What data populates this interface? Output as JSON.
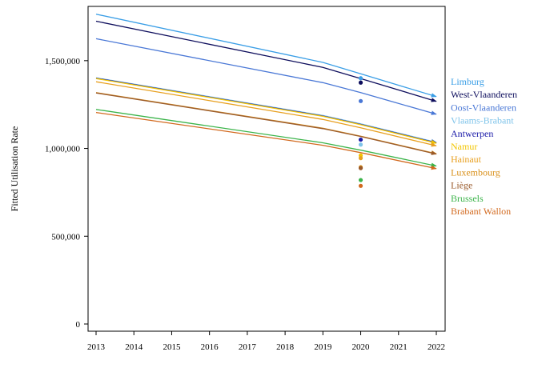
{
  "chart_data": {
    "type": "line",
    "title": "",
    "xlabel": "",
    "ylabel": "Fitted Utilisation Rate",
    "xlim": [
      2013,
      2022
    ],
    "ylim": [
      0,
      1800000
    ],
    "x_ticks": [
      2013,
      2014,
      2015,
      2016,
      2017,
      2018,
      2019,
      2020,
      2021,
      2022
    ],
    "x_tick_labels": [
      "2013",
      "2014",
      "2015",
      "2016",
      "2017",
      "2018",
      "2019",
      "2020",
      "2021",
      "2022"
    ],
    "y_ticks": [
      0,
      500000,
      1000000,
      1500000
    ],
    "y_tick_labels": [
      "0",
      "500,000",
      "1,000,000",
      "1,500,000"
    ],
    "grid": false,
    "legend": "right, labels in series colors",
    "series": [
      {
        "name": "Limburg",
        "color": "#3a9ee6",
        "x": [
          2013,
          2019,
          2020,
          2022
        ],
        "y": [
          1765000,
          1490000,
          1425000,
          1295000
        ],
        "observed_2020": 1400000
      },
      {
        "name": "West-Vlaanderen",
        "color": "#0d0d5c",
        "x": [
          2013,
          2019,
          2020,
          2022
        ],
        "y": [
          1725000,
          1462000,
          1398000,
          1268000
        ],
        "observed_2020": 1375000
      },
      {
        "name": "Oost-Vlaanderen",
        "color": "#4a78d6",
        "x": [
          2013,
          2019,
          2020,
          2022
        ],
        "y": [
          1625000,
          1375000,
          1318000,
          1195000
        ],
        "observed_2020": 1270000
      },
      {
        "name": "Vlaams-Brabant",
        "color": "#7fc4ea",
        "x": [
          2013,
          2019,
          2020,
          2022
        ],
        "y": [
          1402000,
          1188000,
          1140000,
          1035000
        ],
        "observed_2020": 1022000
      },
      {
        "name": "Antwerpen",
        "color": "#1a1aa8",
        "x": [
          2013,
          2019,
          2020,
          2022
        ],
        "y": [
          1400000,
          1185000,
          1137000,
          1032000
        ],
        "observed_2020": 1050000
      },
      {
        "name": "Namur",
        "color": "#f2c500",
        "x": [
          2013,
          2019,
          2020,
          2022
        ],
        "y": [
          1398000,
          1183000,
          1135000,
          1030000
        ],
        "observed_2020": 960000
      },
      {
        "name": "Hainaut",
        "color": "#e8a020",
        "x": [
          2013,
          2019,
          2020,
          2022
        ],
        "y": [
          1380000,
          1165000,
          1118000,
          1015000
        ],
        "observed_2020": 945000
      },
      {
        "name": "Luxembourg",
        "color": "#d9901a",
        "x": [
          2013,
          2019,
          2020,
          2022
        ],
        "y": [
          1318000,
          1115000,
          1070000,
          970000
        ],
        "observed_2020": 893000
      },
      {
        "name": "Liège",
        "color": "#9a5a2a",
        "x": [
          2013,
          2019,
          2020,
          2022
        ],
        "y": [
          1316000,
          1113000,
          1068000,
          968000
        ],
        "observed_2020": 888000
      },
      {
        "name": "Brussels",
        "color": "#3cb44b",
        "x": [
          2013,
          2019,
          2020,
          2022
        ],
        "y": [
          1222000,
          1032000,
          990000,
          900000
        ],
        "observed_2020": 820000
      },
      {
        "name": "Brabant Wallon",
        "color": "#d2691e",
        "x": [
          2013,
          2019,
          2020,
          2022
        ],
        "y": [
          1205000,
          1018000,
          976000,
          885000
        ],
        "observed_2020": 787000
      }
    ]
  }
}
